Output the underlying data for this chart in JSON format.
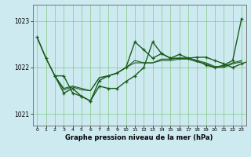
{
  "title": "Graphe pression niveau de la mer (hPa)",
  "xlim": [
    -0.5,
    23.5
  ],
  "ylim": [
    1020.75,
    1023.35
  ],
  "yticks": [
    1021,
    1022,
    1023
  ],
  "xticks": [
    0,
    1,
    2,
    3,
    4,
    5,
    6,
    7,
    8,
    9,
    10,
    11,
    12,
    13,
    14,
    15,
    16,
    17,
    18,
    19,
    20,
    21,
    22,
    23
  ],
  "background_color": "#cdeaf0",
  "grid_color": "#7dc47d",
  "line_color": "#1a5c1a",
  "series": [
    {
      "y": [
        1022.65,
        1022.2,
        1021.82,
        1021.45,
        1021.55,
        1021.38,
        1021.28,
        1021.72,
        1021.82,
        1021.88,
        1022.0,
        1022.55,
        1022.38,
        1022.2,
        1022.3,
        1022.2,
        1022.2,
        1022.2,
        1022.15,
        1022.05,
        1022.0,
        1022.05,
        1022.15,
        1023.05
      ],
      "marker": true,
      "linewidth": 1.0
    },
    {
      "y": [
        1022.65,
        1022.2,
        1021.82,
        1021.52,
        1021.58,
        1021.52,
        1021.5,
        1021.78,
        1021.82,
        1021.88,
        1022.0,
        1022.15,
        1022.1,
        1022.1,
        1022.18,
        1022.18,
        1022.2,
        1022.2,
        1022.15,
        1022.1,
        1022.02,
        1022.02,
        1022.1,
        1022.15
      ],
      "marker": false,
      "linewidth": 0.8
    },
    {
      "y": [
        1022.65,
        1022.2,
        1021.82,
        1021.55,
        1021.6,
        1021.55,
        1021.5,
        1021.78,
        1021.82,
        1021.88,
        1022.0,
        1022.1,
        1022.1,
        1022.1,
        1022.15,
        1022.15,
        1022.18,
        1022.18,
        1022.12,
        1022.08,
        1022.0,
        1022.0,
        1022.08,
        1022.12
      ],
      "marker": false,
      "linewidth": 0.8
    },
    {
      "y": [
        1021.82,
        1021.82,
        1021.45,
        1021.38,
        1021.28,
        1021.6,
        1021.55,
        1021.55,
        1021.7,
        1021.82,
        1022.0,
        1022.55,
        1022.3,
        1022.2,
        1022.28,
        1022.2,
        1022.22,
        1022.22,
        1022.15,
        1022.08,
        1022.0,
        1022.08,
        1022.15,
        1022.2
      ],
      "marker": true,
      "linewidth": 1.0,
      "x_start": 2
    }
  ]
}
